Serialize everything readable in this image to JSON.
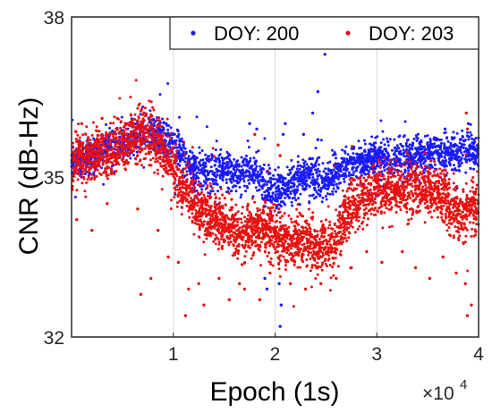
{
  "chart_data": {
    "type": "scatter",
    "xlabel": "Epoch (1s)",
    "ylabel": "CNR (dB-Hz)",
    "x_multiplier_base": "×10",
    "x_multiplier_exp": "4",
    "xlim": [
      0,
      40000
    ],
    "ylim": [
      32,
      38
    ],
    "xticks": [
      10000,
      20000,
      30000,
      40000
    ],
    "xtick_labels": [
      "1",
      "2",
      "3",
      "4"
    ],
    "yticks": [
      32,
      35,
      38
    ],
    "ytick_labels": [
      "32",
      "35",
      "38"
    ],
    "grid": "vertical",
    "legend_position": "top-right",
    "series": [
      {
        "name": "DOY: 200",
        "color": "#1a1aff",
        "trend_x": [
          0,
          2000,
          4000,
          6000,
          7500,
          9000,
          10000,
          11000,
          12000,
          14000,
          16000,
          18000,
          19000,
          20000,
          21000,
          22000,
          23000,
          24000,
          25000,
          26000,
          27000,
          28000,
          30000,
          32000,
          34000,
          36000,
          38000,
          40000
        ],
        "trend_y": [
          35.3,
          35.4,
          35.6,
          35.7,
          35.9,
          35.7,
          35.6,
          35.4,
          35.1,
          35.1,
          35.1,
          35.1,
          34.8,
          34.7,
          34.8,
          34.9,
          35.0,
          35.0,
          34.9,
          35.1,
          35.2,
          35.3,
          35.35,
          35.35,
          35.4,
          35.45,
          35.45,
          35.5
        ],
        "outliers": [
          [
            19000,
            33.1
          ],
          [
            19200,
            32.9
          ],
          [
            20500,
            32.2
          ],
          [
            20600,
            32.6
          ],
          [
            20400,
            33.0
          ],
          [
            17500,
            36.0
          ],
          [
            18200,
            35.9
          ],
          [
            20800,
            35.8
          ],
          [
            21000,
            36.0
          ],
          [
            22800,
            35.8
          ],
          [
            23700,
            36.2
          ],
          [
            24200,
            36.6
          ],
          [
            24900,
            37.3
          ],
          [
            24200,
            35.7
          ],
          [
            36700,
            35.9
          ],
          [
            38200,
            35.7
          ],
          [
            39000,
            36.0
          ],
          [
            29500,
            35.6
          ],
          [
            33500,
            35.6
          ],
          [
            9300,
            36.0
          ]
        ]
      },
      {
        "name": "DOY: 203",
        "color": "#e81010",
        "trend_x": [
          0,
          2000,
          4000,
          6000,
          7500,
          9000,
          10000,
          11000,
          12000,
          13000,
          14000,
          15000,
          16000,
          17000,
          18000,
          19000,
          20000,
          21000,
          22000,
          23000,
          24000,
          25000,
          26000,
          27000,
          28000,
          29000,
          30000,
          32000,
          34000,
          36000,
          38000,
          40000
        ],
        "trend_y": [
          35.3,
          35.4,
          35.5,
          35.7,
          35.8,
          35.5,
          35.1,
          34.8,
          34.5,
          34.3,
          34.3,
          34.1,
          34.0,
          33.9,
          34.0,
          34.0,
          33.9,
          33.8,
          33.8,
          33.8,
          33.7,
          33.7,
          33.8,
          34.3,
          34.5,
          34.6,
          34.7,
          34.75,
          34.8,
          34.7,
          34.3,
          34.4
        ],
        "outliers": [
          [
            500,
            34.2
          ],
          [
            2000,
            34.0
          ],
          [
            3500,
            34.5
          ],
          [
            6500,
            34.4
          ],
          [
            8500,
            34.0
          ],
          [
            9500,
            33.5
          ],
          [
            10500,
            33.4
          ],
          [
            11500,
            32.9
          ],
          [
            12500,
            33.0
          ],
          [
            13000,
            32.6
          ],
          [
            14500,
            33.1
          ],
          [
            15500,
            32.7
          ],
          [
            17000,
            32.9
          ],
          [
            18500,
            32.7
          ],
          [
            19500,
            33.2
          ],
          [
            21500,
            33.0
          ],
          [
            23000,
            32.9
          ],
          [
            24500,
            33.0
          ],
          [
            26000,
            33.1
          ],
          [
            27500,
            33.3
          ],
          [
            29000,
            33.6
          ],
          [
            30500,
            33.4
          ],
          [
            32500,
            33.6
          ],
          [
            33800,
            33.3
          ],
          [
            35200,
            33.1
          ],
          [
            36500,
            33.5
          ],
          [
            37800,
            33.2
          ],
          [
            38700,
            33.0
          ],
          [
            38900,
            32.4
          ],
          [
            39300,
            32.6
          ],
          [
            38800,
            36.2
          ],
          [
            38900,
            35.9
          ],
          [
            20300,
            35.6
          ],
          [
            20500,
            35.4
          ],
          [
            18000,
            35.8
          ],
          [
            1000,
            36.0
          ],
          [
            3000,
            36.1
          ],
          [
            4500,
            36.1
          ],
          [
            5500,
            36.0
          ],
          [
            7000,
            36.0
          ],
          [
            6800,
            32.8
          ],
          [
            7800,
            33.1
          ],
          [
            11200,
            32.4
          ],
          [
            16500,
            33.0
          ]
        ]
      }
    ]
  }
}
